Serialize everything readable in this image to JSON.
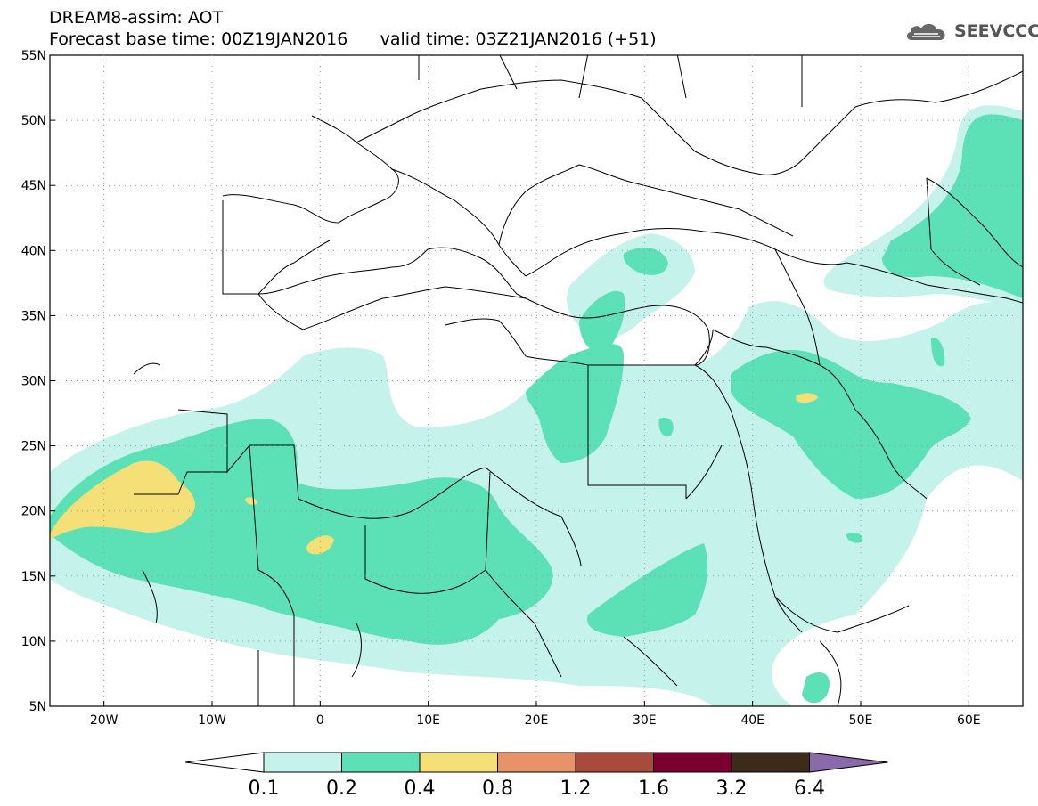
{
  "header": {
    "title_line1": "DREAM8-assim: AOT",
    "base_time": "Forecast base time: 00Z19JAN2016",
    "valid_time": "valid time: 03Z21JAN2016 (+51)"
  },
  "logo": {
    "text": "SEEVCCC",
    "icon": "cloud-logo-icon"
  },
  "map": {
    "lon_range": [
      -25,
      65
    ],
    "lat_range": [
      5,
      55
    ],
    "lon_ticks": [
      {
        "v": -20,
        "label": "20W"
      },
      {
        "v": -10,
        "label": "10W"
      },
      {
        "v": 0,
        "label": "0"
      },
      {
        "v": 10,
        "label": "10E"
      },
      {
        "v": 20,
        "label": "20E"
      },
      {
        "v": 30,
        "label": "30E"
      },
      {
        "v": 40,
        "label": "40E"
      },
      {
        "v": 50,
        "label": "50E"
      },
      {
        "v": 60,
        "label": "60E"
      }
    ],
    "lat_ticks": [
      {
        "v": 5,
        "label": "5N"
      },
      {
        "v": 10,
        "label": "10N"
      },
      {
        "v": 15,
        "label": "15N"
      },
      {
        "v": 20,
        "label": "20N"
      },
      {
        "v": 25,
        "label": "25N"
      },
      {
        "v": 30,
        "label": "30N"
      },
      {
        "v": 35,
        "label": "35N"
      },
      {
        "v": 40,
        "label": "40N"
      },
      {
        "v": 45,
        "label": "45N"
      },
      {
        "v": 50,
        "label": "50N"
      },
      {
        "v": 55,
        "label": "55N"
      }
    ]
  },
  "colorbar": {
    "labels": [
      "0.1",
      "0.2",
      "0.4",
      "0.8",
      "1.2",
      "1.6",
      "3.2",
      "6.4"
    ],
    "low_color": "#ffffff",
    "colors": [
      "#c5f2ea",
      "#5ce0b5",
      "#f5e077",
      "#e8926a",
      "#a84b3d",
      "#7a0030",
      "#3d2a1a"
    ],
    "high_color": "#8a6aa8"
  },
  "fields": {
    "aot_0_1_color": "#c5f2ea",
    "aot_0_2_color": "#5ce0b5",
    "aot_0_4_color": "#f5e077"
  }
}
